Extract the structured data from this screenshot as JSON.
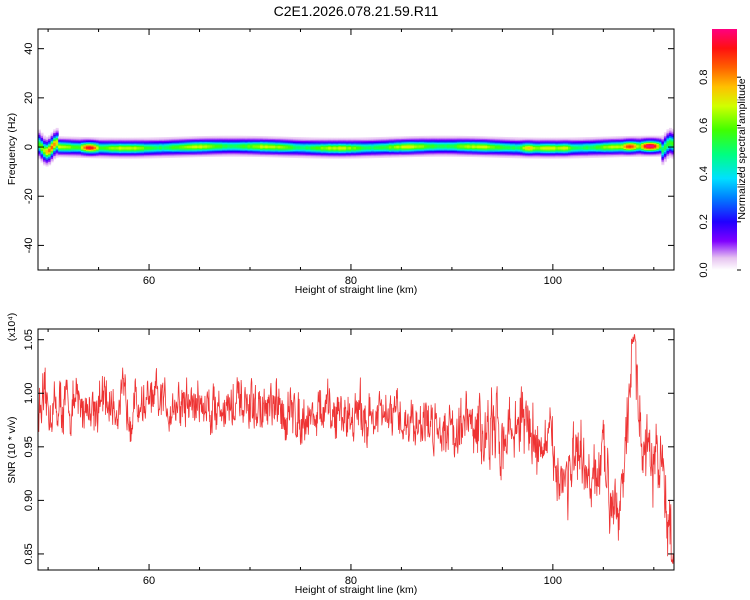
{
  "title": "C2E1.2026.078.21.59.R11",
  "colors": {
    "series": "#ee3333",
    "frame": "#000000"
  },
  "chart_data": [
    {
      "type": "heatmap",
      "title": "C2E1.2026.078.21.59.R11",
      "xlabel": "Height of straight line (km)",
      "ylabel": "Frequency (Hz)",
      "xlim": [
        49,
        112
      ],
      "ylim": [
        -50,
        48
      ],
      "x_ticks": [
        60,
        80,
        100
      ],
      "x_tick_labels": [
        "60",
        "80",
        "100"
      ],
      "y_ticks": [
        -40,
        -20,
        0,
        20,
        40
      ],
      "y_tick_labels": [
        "-40",
        "-20",
        "0",
        "20",
        "40"
      ],
      "colorbar": {
        "label": "Normalized spectral amplitude",
        "range": [
          0,
          1
        ],
        "ticks": [
          0.0,
          0.2,
          0.4,
          0.6,
          0.8
        ],
        "tick_labels": [
          "0.0",
          "0.2",
          "0.4",
          "0.6",
          "0.8"
        ],
        "colormap": "rainbow"
      },
      "band": {
        "center_hz": 0,
        "half_width_hz": 3.5,
        "hot_spots_km": [
          {
            "x": 50.2,
            "amp": 0.75
          },
          {
            "x": 54.0,
            "amp": 0.85
          },
          {
            "x": 97.5,
            "amp": 0.65
          },
          {
            "x": 101.0,
            "amp": 0.6
          },
          {
            "x": 107.5,
            "amp": 0.8
          },
          {
            "x": 109.5,
            "amp": 0.95
          }
        ]
      }
    },
    {
      "type": "line",
      "xlabel": "Height of straight line (km)",
      "ylabel": "SNR (10 * v/v)",
      "y_scale_label": "(x10⁴)",
      "xlim": [
        49,
        112
      ],
      "ylim": [
        0.835,
        1.06
      ],
      "x_ticks": [
        60,
        80,
        100
      ],
      "x_tick_labels": [
        "60",
        "80",
        "100"
      ],
      "y_ticks": [
        0.85,
        0.9,
        0.95,
        1.0,
        1.05
      ],
      "y_tick_labels": [
        "0.85",
        "0.90",
        "0.95",
        "1.00",
        "1.05"
      ],
      "series": [
        {
          "color": "#ee3333",
          "trend_x": [
            49,
            55,
            60,
            65,
            70,
            75,
            80,
            85,
            90,
            93,
            95,
            97,
            99,
            100,
            101,
            102,
            103,
            104,
            105,
            106,
            107,
            107.5,
            108,
            108.5,
            109,
            110,
            111,
            111.5,
            112
          ],
          "trend_y": [
            0.985,
            0.99,
            0.99,
            0.99,
            0.985,
            0.98,
            0.98,
            0.975,
            0.97,
            0.965,
            0.96,
            0.975,
            0.95,
            0.945,
            0.92,
            0.935,
            0.925,
            0.91,
            0.935,
            0.905,
            0.92,
            0.98,
            1.04,
            0.98,
            0.94,
            0.93,
            0.935,
            0.88,
            0.85
          ]
        }
      ]
    }
  ]
}
